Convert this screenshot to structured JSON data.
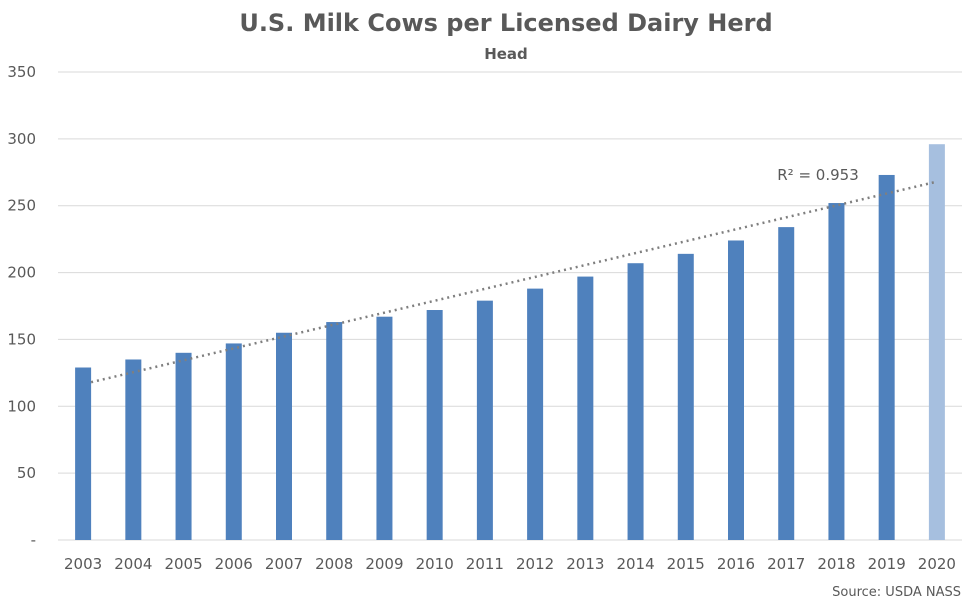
{
  "chart_data": {
    "type": "bar",
    "title": "U.S. Milk Cows per Licensed Dairy Herd",
    "subtitle": "Head",
    "categories": [
      "2003",
      "2004",
      "2005",
      "2006",
      "2007",
      "2008",
      "2009",
      "2010",
      "2011",
      "2012",
      "2013",
      "2014",
      "2015",
      "2016",
      "2017",
      "2018",
      "2019",
      "2020"
    ],
    "values": [
      129,
      135,
      140,
      147,
      155,
      163,
      167,
      172,
      179,
      188,
      197,
      207,
      214,
      224,
      234,
      252,
      273,
      296
    ],
    "ylim": [
      0,
      350
    ],
    "yticks": [
      0,
      50,
      100,
      150,
      200,
      250,
      300,
      350
    ],
    "ytick_labels": [
      "-",
      "50",
      "100",
      "150",
      "200",
      "250",
      "300",
      "350"
    ],
    "grid": true,
    "legend": "none",
    "bar_color": "#4f81bd",
    "highlight_index": 17,
    "highlight_color": "#a6bfdf",
    "trendline": {
      "type": "linear",
      "start_value": 118,
      "end_value": 268,
      "label": "R² = 0.953"
    },
    "source": "Source: USDA NASS"
  }
}
